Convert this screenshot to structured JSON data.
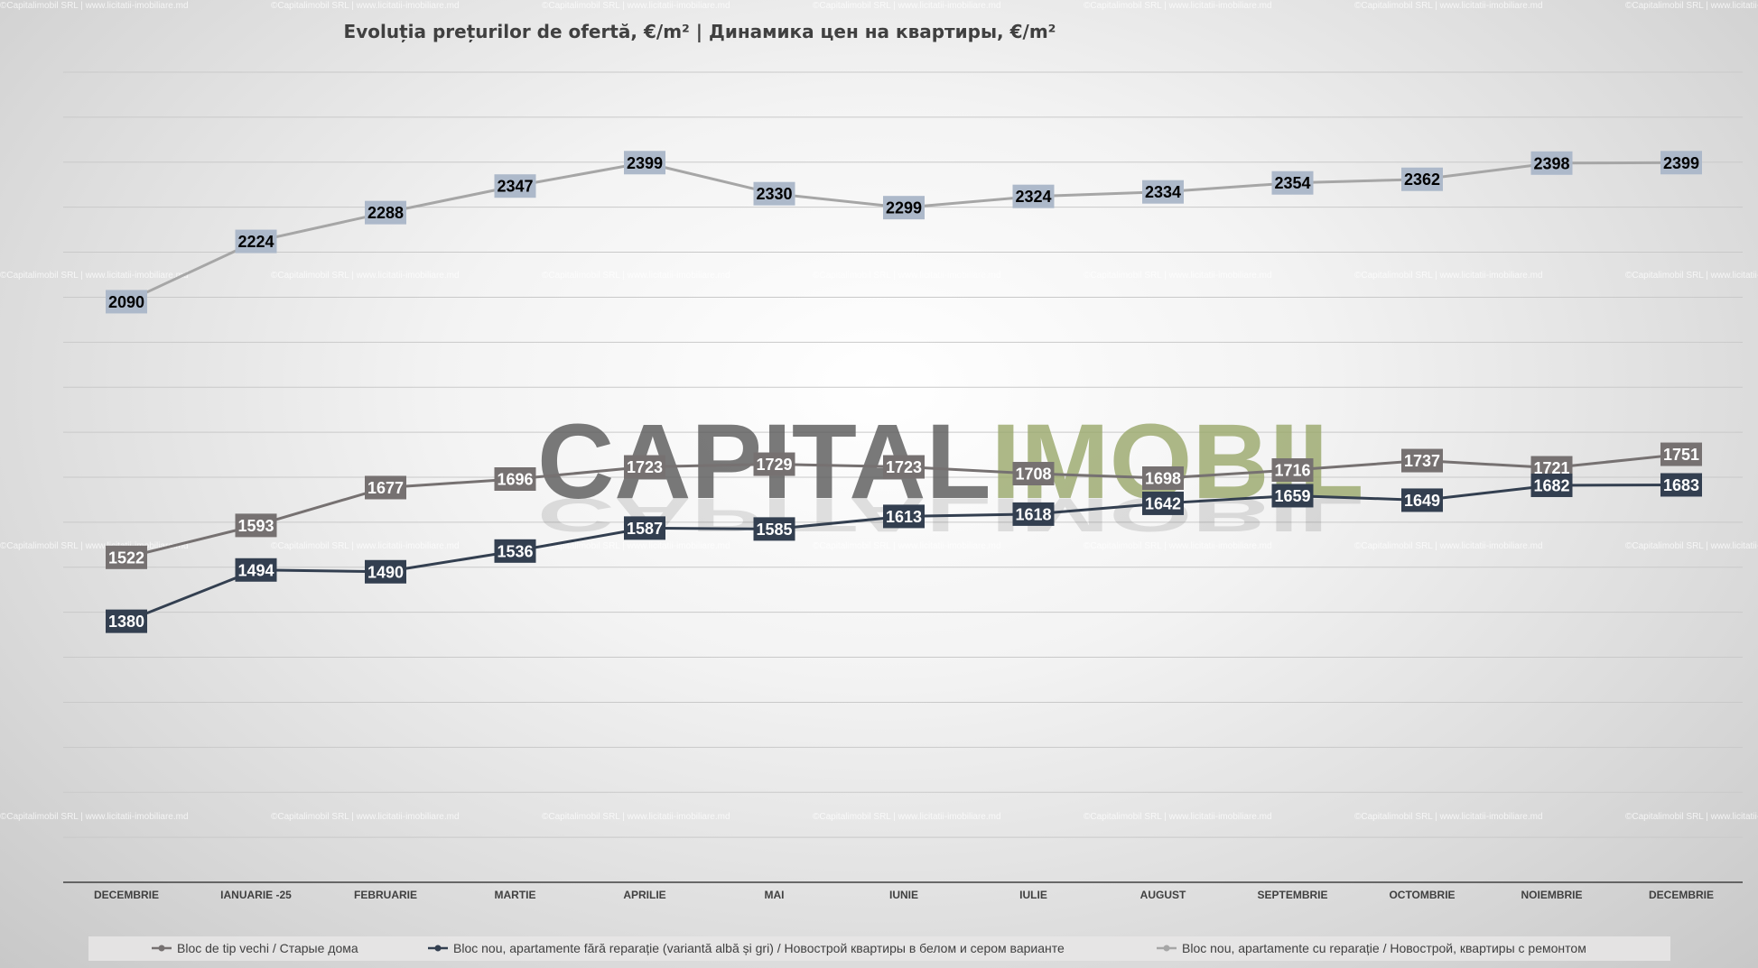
{
  "chart_data": {
    "type": "line",
    "title": "Evoluția prețurilor de ofertă, €/m²  |  Динамика цен на квартиры, €/m²",
    "categories": [
      "DECEMBRIE",
      "IANUARIE -25",
      "FEBRUARIE",
      "MARTIE",
      "APRILIE",
      "MAI",
      "IUNIE",
      "IULIE",
      "AUGUST",
      "SEPTEMBRIE",
      "OCTOMBRIE",
      "NOIEMBRIE",
      "DECEMBRIE"
    ],
    "series": [
      {
        "name": "Bloc de tip vechi / Старые дома",
        "color": "#767171",
        "values": [
          1522,
          1593,
          1677,
          1696,
          1723,
          1729,
          1723,
          1708,
          1698,
          1716,
          1737,
          1721,
          1751
        ]
      },
      {
        "name": "Bloc nou,  apartamente fără reparație (variantă albă și gri) / Новострой квартиры в белом и сером варианте",
        "color": "#333f50",
        "values": [
          1380,
          1494,
          1490,
          1536,
          1587,
          1585,
          1613,
          1618,
          1642,
          1659,
          1649,
          1682,
          1683
        ]
      },
      {
        "name": "Bloc nou,  apartamente cu reparație / Новострой, квартиры с ремонтом",
        "color": "#a6a6a6",
        "label_bg": "#adb9ca",
        "values": [
          2090,
          2224,
          2288,
          2347,
          2399,
          2330,
          2299,
          2324,
          2334,
          2354,
          2362,
          2398,
          2399
        ]
      }
    ],
    "ylim": [
      800,
      2600
    ],
    "grid": true,
    "legend_position": "bottom",
    "data_labels": true
  },
  "watermark": {
    "logo_part1": "CAPITAL",
    "logo_part2": "IMOBIL",
    "logo_color1": "#595959",
    "logo_color2": "#9aa86b",
    "credit": "©Capitalimobil SRL | www.licitatii-imobiliare.md"
  }
}
